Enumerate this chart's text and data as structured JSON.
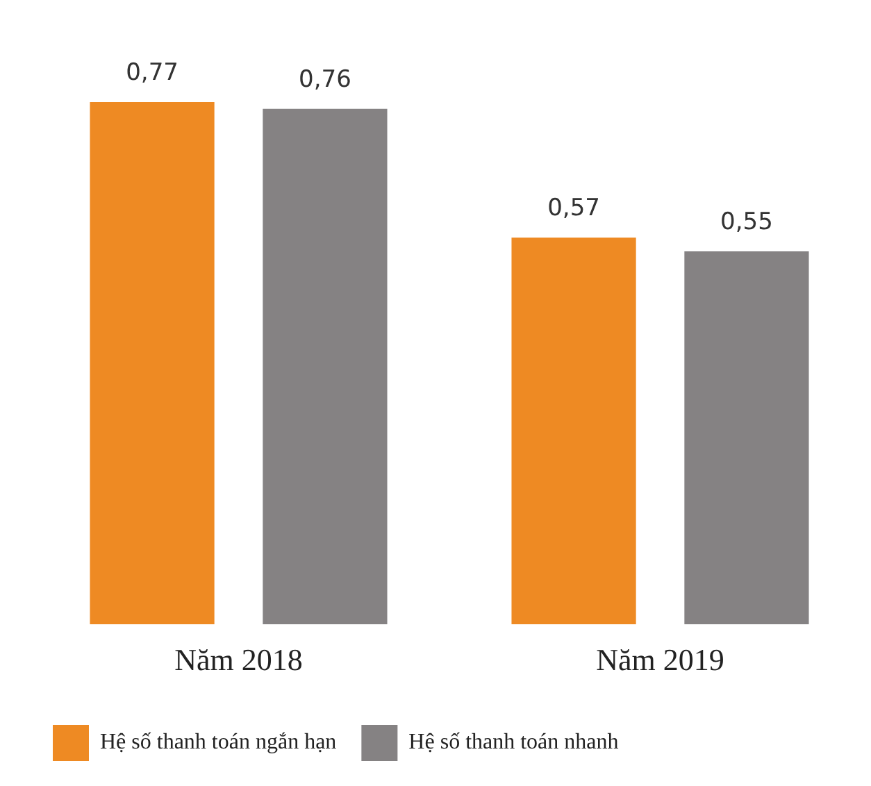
{
  "chart_data": {
    "type": "bar",
    "categories": [
      "Năm 2018",
      "Năm 2019"
    ],
    "series": [
      {
        "name": "Hệ số thanh toán ngắn hạn",
        "color": "#ee8a23",
        "values": [
          0.77,
          0.57
        ],
        "value_labels": [
          "0,77",
          "0,57"
        ]
      },
      {
        "name": "Hệ số thanh toán nhanh",
        "color": "#858283",
        "values": [
          0.76,
          0.55
        ],
        "value_labels": [
          "0,76",
          "0,55"
        ]
      }
    ],
    "legend": "bottom",
    "grid": false,
    "tick_labels": "x"
  }
}
